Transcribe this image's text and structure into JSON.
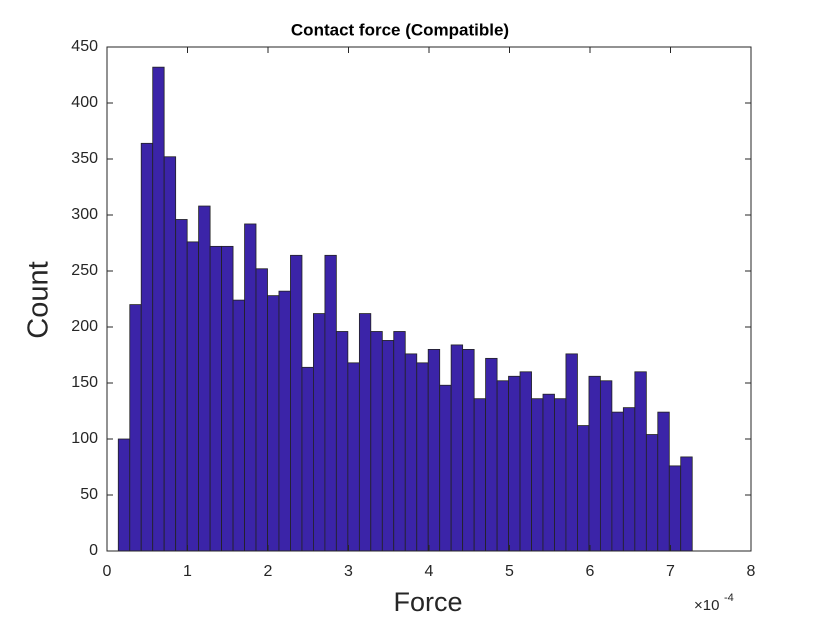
{
  "chart_data": {
    "type": "histogram",
    "title": "Contact force (Compatible)",
    "x_label": "Force",
    "y_label": "Count",
    "x_multiplier": {
      "base": "×10",
      "exponent": "-4"
    },
    "bins": [
      0.14,
      0.283,
      0.425,
      0.568,
      0.71,
      0.853,
      0.996,
      1.138,
      1.281,
      1.423,
      1.566,
      1.709,
      1.851,
      1.994,
      2.136,
      2.279,
      2.422,
      2.564,
      2.707,
      2.849,
      2.992,
      3.135,
      3.277,
      3.42,
      3.562,
      3.705,
      3.848,
      3.99,
      4.133,
      4.275,
      4.418,
      4.561,
      4.703,
      4.846,
      4.988,
      5.131,
      5.274,
      5.416,
      5.559,
      5.701,
      5.844,
      5.987,
      6.129,
      6.272,
      6.414,
      6.557,
      6.7,
      6.842,
      6.985,
      7.127,
      7.27
    ],
    "values": [
      100,
      220,
      364,
      432,
      352,
      296,
      276,
      308,
      272,
      272,
      224,
      292,
      252,
      228,
      232,
      264,
      164,
      212,
      264,
      196,
      168,
      212,
      196,
      188,
      196,
      176,
      168,
      180,
      148,
      184,
      180,
      136,
      172,
      152,
      156,
      160,
      136,
      140,
      136,
      176,
      112,
      156,
      152,
      124,
      128,
      160,
      104,
      124,
      76,
      84
    ],
    "color": "#3b24a8",
    "edge_color": "#222222",
    "xlim": [
      0,
      8
    ],
    "xticks": [
      0,
      1,
      2,
      3,
      4,
      5,
      6,
      7,
      8
    ],
    "ylim": [
      0,
      450
    ],
    "yticks": [
      0,
      50,
      100,
      150,
      200,
      250,
      300,
      350,
      400,
      450
    ]
  }
}
